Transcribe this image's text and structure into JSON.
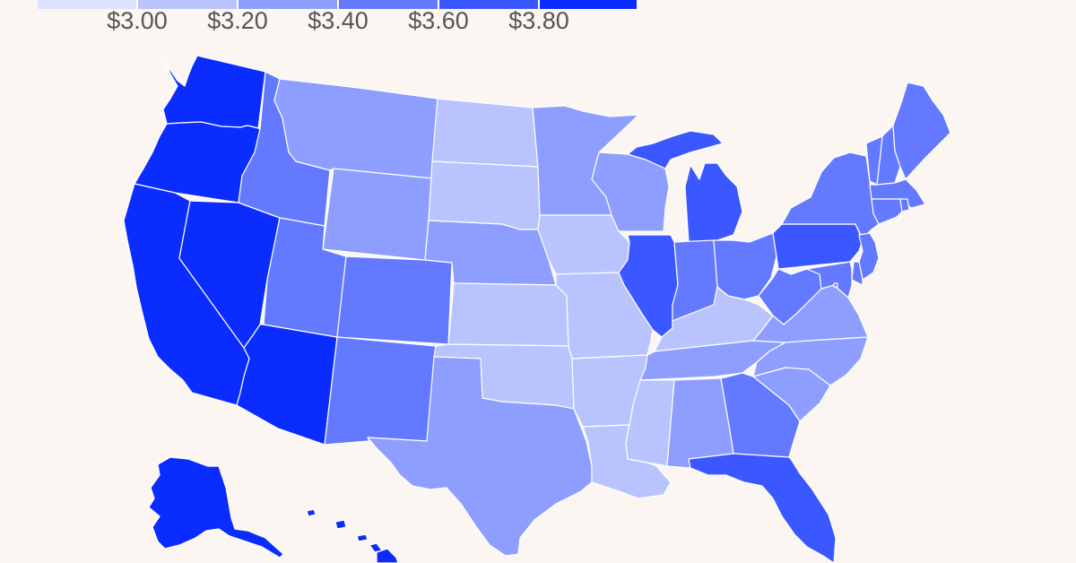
{
  "legend": {
    "tick_labels": [
      "$3.00",
      "$3.20",
      "$3.40",
      "$3.60",
      "$3.80"
    ],
    "colors": [
      "#dde3ff",
      "#b9c4ff",
      "#8d9eff",
      "#6379ff",
      "#3b57ff",
      "#0a2cff"
    ]
  },
  "states": [
    {
      "id": "WA",
      "bin": 5
    },
    {
      "id": "OR",
      "bin": 5
    },
    {
      "id": "CA",
      "bin": 5
    },
    {
      "id": "NV",
      "bin": 5
    },
    {
      "id": "AZ",
      "bin": 5
    },
    {
      "id": "ID",
      "bin": 3
    },
    {
      "id": "MT",
      "bin": 2
    },
    {
      "id": "WY",
      "bin": 2
    },
    {
      "id": "UT",
      "bin": 3
    },
    {
      "id": "CO",
      "bin": 3
    },
    {
      "id": "NM",
      "bin": 3
    },
    {
      "id": "ND",
      "bin": 1
    },
    {
      "id": "SD",
      "bin": 1
    },
    {
      "id": "NE",
      "bin": 2
    },
    {
      "id": "KS",
      "bin": 1
    },
    {
      "id": "OK",
      "bin": 1
    },
    {
      "id": "TX",
      "bin": 2
    },
    {
      "id": "MN",
      "bin": 2
    },
    {
      "id": "IA",
      "bin": 1
    },
    {
      "id": "MO",
      "bin": 1
    },
    {
      "id": "AR",
      "bin": 1
    },
    {
      "id": "LA",
      "bin": 1
    },
    {
      "id": "WI",
      "bin": 2
    },
    {
      "id": "IL",
      "bin": 4
    },
    {
      "id": "MI",
      "bin": 4
    },
    {
      "id": "IN",
      "bin": 3
    },
    {
      "id": "OH",
      "bin": 3
    },
    {
      "id": "KY",
      "bin": 1
    },
    {
      "id": "TN",
      "bin": 2
    },
    {
      "id": "MS",
      "bin": 1
    },
    {
      "id": "AL",
      "bin": 2
    },
    {
      "id": "GA",
      "bin": 3
    },
    {
      "id": "FL",
      "bin": 4
    },
    {
      "id": "SC",
      "bin": 2
    },
    {
      "id": "NC",
      "bin": 2
    },
    {
      "id": "VA",
      "bin": 2
    },
    {
      "id": "WV",
      "bin": 3
    },
    {
      "id": "PA",
      "bin": 4
    },
    {
      "id": "NY",
      "bin": 3
    },
    {
      "id": "VT",
      "bin": 3
    },
    {
      "id": "NH",
      "bin": 3
    },
    {
      "id": "ME",
      "bin": 3
    },
    {
      "id": "MA",
      "bin": 3
    },
    {
      "id": "CT",
      "bin": 3
    },
    {
      "id": "RI",
      "bin": 3
    },
    {
      "id": "NJ",
      "bin": 3
    },
    {
      "id": "DE",
      "bin": 3
    },
    {
      "id": "MD",
      "bin": 3
    },
    {
      "id": "DC",
      "bin": 3
    },
    {
      "id": "AK",
      "bin": 5
    },
    {
      "id": "HI",
      "bin": 5
    }
  ]
}
